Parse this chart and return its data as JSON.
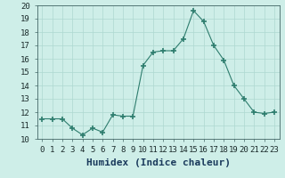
{
  "x": [
    0,
    1,
    2,
    3,
    4,
    5,
    6,
    7,
    8,
    9,
    10,
    11,
    12,
    13,
    14,
    15,
    16,
    17,
    18,
    19,
    20,
    21,
    22,
    23
  ],
  "y": [
    11.5,
    11.5,
    11.5,
    10.8,
    10.3,
    10.8,
    10.5,
    11.8,
    11.7,
    11.7,
    15.5,
    16.5,
    16.6,
    16.6,
    17.5,
    19.6,
    18.8,
    17.0,
    15.9,
    14.0,
    13.0,
    12.0,
    11.9,
    12.0
  ],
  "xlabel": "Humidex (Indice chaleur)",
  "xlim": [
    -0.5,
    23.5
  ],
  "ylim": [
    10,
    20
  ],
  "yticks": [
    10,
    11,
    12,
    13,
    14,
    15,
    16,
    17,
    18,
    19,
    20
  ],
  "xticks": [
    0,
    1,
    2,
    3,
    4,
    5,
    6,
    7,
    8,
    9,
    10,
    11,
    12,
    13,
    14,
    15,
    16,
    17,
    18,
    19,
    20,
    21,
    22,
    23
  ],
  "line_color": "#2e7d6e",
  "marker": "+",
  "marker_size": 5,
  "bg_color": "#ceeee8",
  "grid_color": "#aed8d0",
  "xlabel_fontsize": 8,
  "tick_fontsize": 6.5
}
